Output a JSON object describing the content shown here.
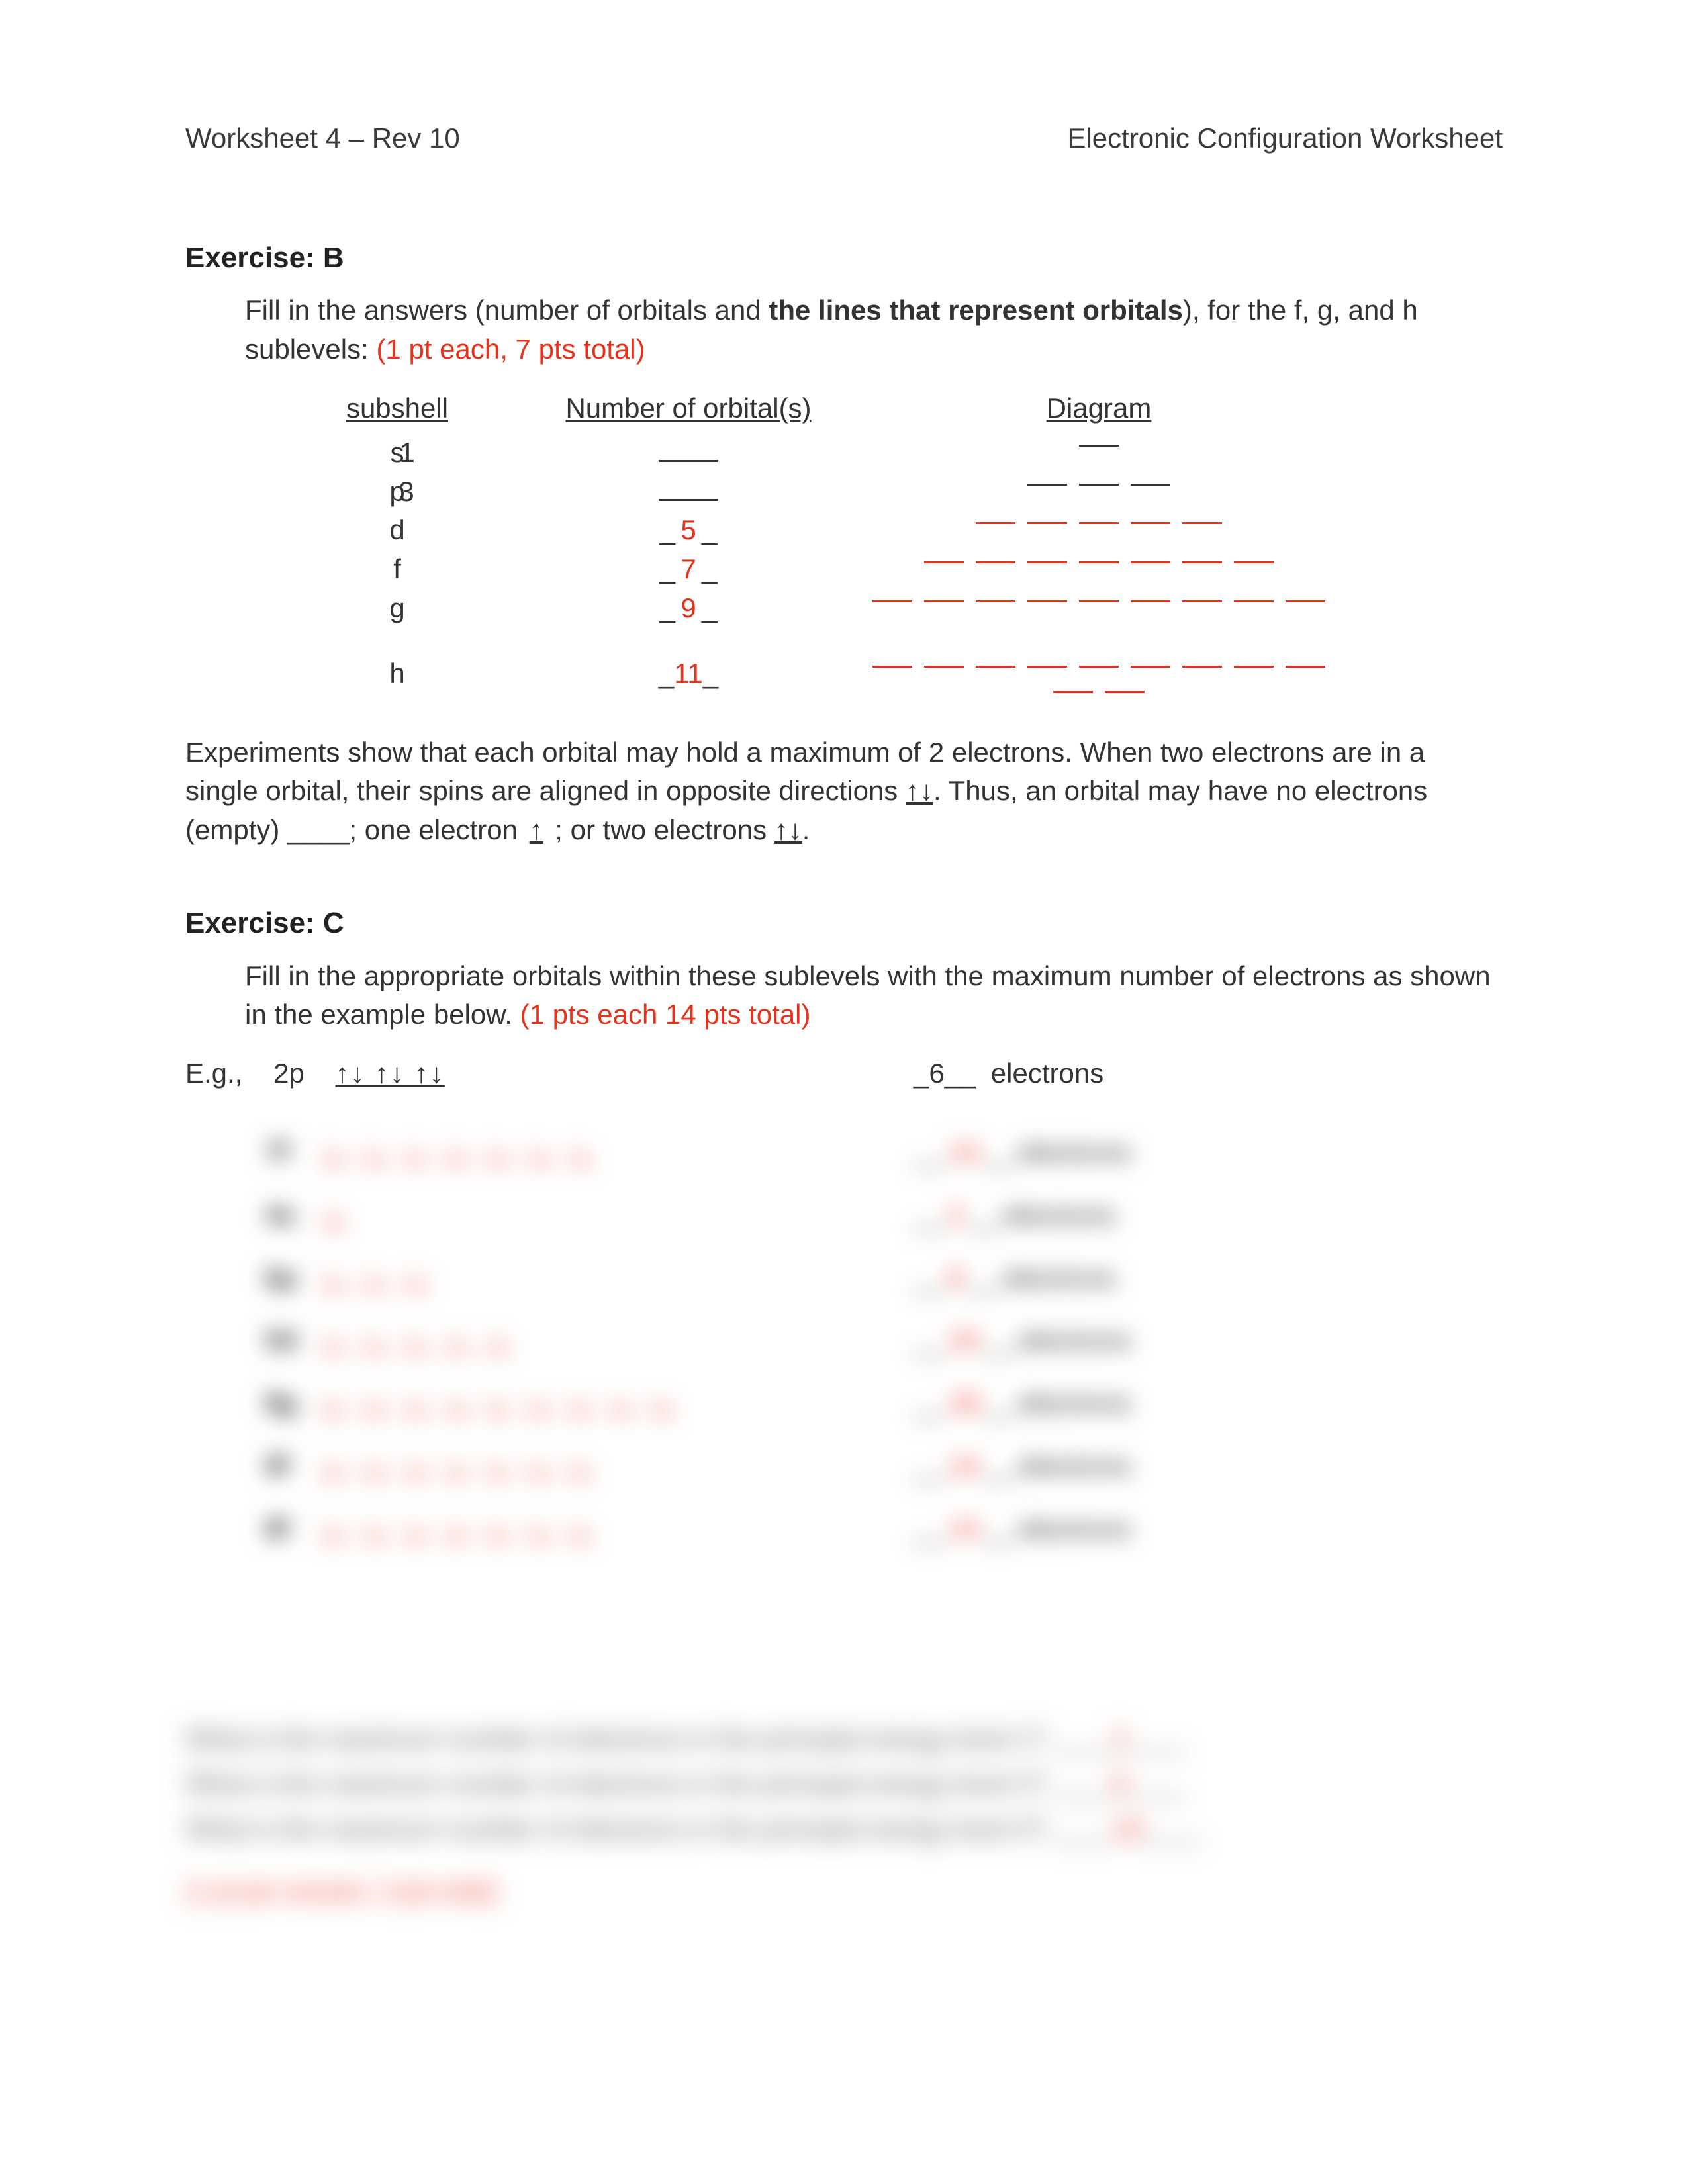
{
  "header": {
    "left": "Worksheet 4 – Rev 10",
    "right": "Electronic Configuration Worksheet"
  },
  "exB": {
    "title": "Exercise: B",
    "instr_a": "Fill in the answers (number of orbitals and ",
    "instr_bold": "the lines that represent orbitals",
    "instr_b": "), for the f, g, and h sublevels: ",
    "pts": "(1 pt each, 7 pts total)",
    "head_sub": "subshell",
    "head_num": "Number of orbital(s)",
    "head_diag": "Diagram",
    "rows": [
      {
        "sub_a": "s",
        "sub_b": "1",
        "num": "",
        "num_red": false,
        "lines": 1,
        "lines_red": false
      },
      {
        "sub_a": "p",
        "sub_b": "3",
        "num": "",
        "num_red": false,
        "lines": 3,
        "lines_red": false
      },
      {
        "sub_a": "d",
        "sub_b": "",
        "num": "5",
        "num_red": true,
        "lines": 5,
        "lines_red": true
      },
      {
        "sub_a": "f",
        "sub_b": "",
        "num": "7",
        "num_red": true,
        "lines": 7,
        "lines_red": true
      },
      {
        "sub_a": "g",
        "sub_b": "",
        "num": "9",
        "num_red": true,
        "lines": 9,
        "lines_red": true
      },
      {
        "sub_a": "h",
        "sub_b": "",
        "num": "11",
        "num_red": true,
        "lines": 11,
        "lines_red": true
      }
    ]
  },
  "body": {
    "text_a": "Experiments show that each orbital may hold a maximum of 2 electrons.  When two electrons are in a single orbital, their spins are aligned in opposite directions ",
    "ud": "↑↓",
    "text_b": ".  Thus, an orbital may have no electrons (empty) ____; one electron ",
    "up": "↑",
    "text_c": " ; or two electrons ",
    "ud2": "↑↓",
    "text_d": "."
  },
  "exC": {
    "title": "Exercise: C",
    "instr": "Fill in the appropriate orbitals within these sublevels with the maximum number of electrons as shown in the example below. ",
    "pts": "(1 pts each 14 pts total)",
    "eg_label": "E.g.,",
    "eg_sub": "2p",
    "eg_orbs": "↑↓  ↑↓  ↑↓",
    "eg_count": "_6__",
    "eg_word": "electrons",
    "rows": [
      {
        "label": "7f",
        "orbs": 7,
        "count": "14",
        "word": "electrons"
      },
      {
        "label": "4s",
        "orbs": 1,
        "count": "2",
        "word": "electrons"
      },
      {
        "label": "6p",
        "orbs": 3,
        "count": "6",
        "word": "electrons"
      },
      {
        "label": "5d",
        "orbs": 5,
        "count": "10",
        "word": "electrons"
      },
      {
        "label": "8g",
        "orbs": 9,
        "count": "18",
        "word": "electrons"
      },
      {
        "label": "9f",
        "orbs": 7,
        "count": "14",
        "word": "electrons"
      },
      {
        "label": "8f",
        "orbs": 7,
        "count": "14",
        "word": "electrons"
      }
    ]
  },
  "questions": {
    "lines": [
      {
        "q": "What is the maximum number of electrons in the principal energy level 1?",
        "a": "2"
      },
      {
        "q": "What is the maximum number of electrons in the principal energy level 2?",
        "a": "8"
      },
      {
        "q": "What is the maximum number of electrons in the principal energy level 3?",
        "a": "18"
      }
    ],
    "total": "(1 pt per answer, 3 pts total)"
  },
  "colors": {
    "red": "#e8311a",
    "text": "#333333"
  }
}
